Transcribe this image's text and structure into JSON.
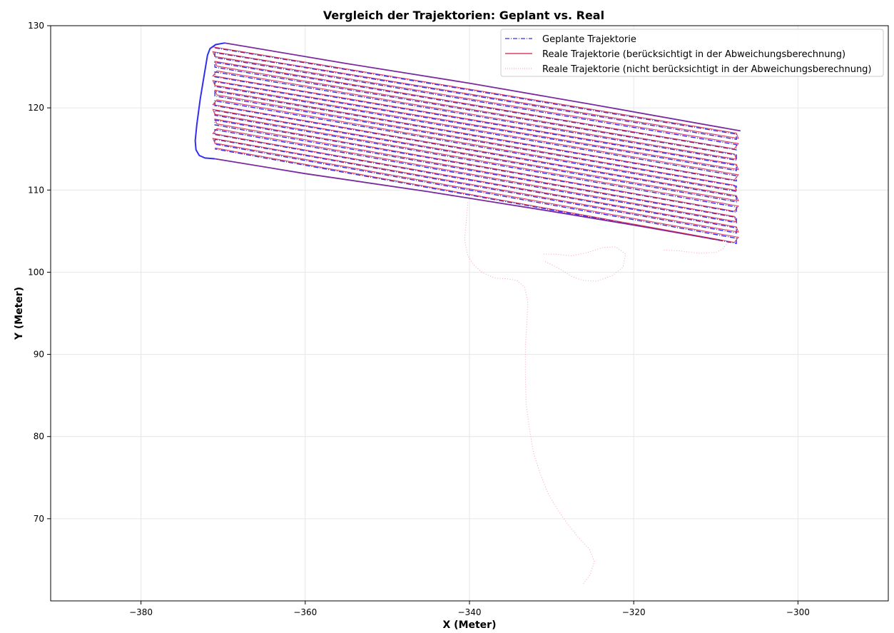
{
  "chart_data": {
    "type": "line",
    "title": "Vergleich der Trajektorien: Geplant vs. Real",
    "xlabel": "X (Meter)",
    "ylabel": "Y (Meter)",
    "xlim": [
      -391,
      -289
    ],
    "ylim": [
      60,
      130
    ],
    "xticks": [
      {
        "value": -380,
        "label": "−380"
      },
      {
        "value": -360,
        "label": "−360"
      },
      {
        "value": -340,
        "label": "−340"
      },
      {
        "value": -320,
        "label": "−320"
      },
      {
        "value": -300,
        "label": "−300"
      }
    ],
    "yticks": [
      {
        "value": 70,
        "label": "70"
      },
      {
        "value": 80,
        "label": "80"
      },
      {
        "value": 90,
        "label": "90"
      },
      {
        "value": 100,
        "label": "100"
      },
      {
        "value": 110,
        "label": "110"
      },
      {
        "value": 120,
        "label": "120"
      },
      {
        "value": 130,
        "label": "130"
      }
    ],
    "grid": true,
    "legend_position": "top-right",
    "rows": {
      "count": 22,
      "x_left": -371.0,
      "x_right": -307.5,
      "y_left_top": 127.3,
      "y_left_bottom": 115.0,
      "y_right_top": 116.8,
      "y_right_bottom": 103.5
    },
    "series": [
      {
        "name": "Geplante Trajektorie",
        "color": "#2f2ff0",
        "style": "dashdot",
        "outline": [
          [
            -369.8,
            127.9
          ],
          [
            -370.9,
            127.7
          ],
          [
            -371.6,
            127.2
          ],
          [
            -371.9,
            126.4
          ],
          [
            -372.3,
            124.0
          ],
          [
            -372.8,
            121.0
          ],
          [
            -373.2,
            118.0
          ],
          [
            -373.4,
            116.0
          ],
          [
            -373.3,
            114.9
          ],
          [
            -372.9,
            114.2
          ],
          [
            -372.2,
            113.9
          ],
          [
            -371.0,
            113.8
          ]
        ]
      },
      {
        "name": "Reale Trajektorie (berücksichtigt in der Abweichungsberechnung)",
        "color": "#d81b40",
        "style": "solid"
      },
      {
        "name": "Reale Trajektorie (nicht berücksichtigt in der Abweichungsberechnung)",
        "color": "#f6a0b8",
        "style": "dotted",
        "path": [
          [
            -340.2,
            108.5
          ],
          [
            -340.4,
            106.0
          ],
          [
            -340.6,
            104.0
          ],
          [
            -340.2,
            102.0
          ],
          [
            -339.5,
            100.9
          ],
          [
            -338.5,
            100.0
          ],
          [
            -337.0,
            99.3
          ],
          [
            -335.5,
            99.2
          ],
          [
            -334.2,
            99.0
          ],
          [
            -333.3,
            98.2
          ],
          [
            -332.9,
            96.5
          ],
          [
            -333.0,
            94.0
          ],
          [
            -333.2,
            91.0
          ],
          [
            -333.2,
            87.5
          ],
          [
            -333.1,
            84.0
          ],
          [
            -332.7,
            81.0
          ],
          [
            -332.2,
            78.0
          ],
          [
            -331.4,
            75.5
          ],
          [
            -330.4,
            73.0
          ],
          [
            -329.2,
            71.0
          ],
          [
            -328.0,
            69.3
          ],
          [
            -326.8,
            67.8
          ],
          [
            -325.4,
            66.3
          ],
          [
            -324.8,
            64.8
          ],
          [
            -325.3,
            63.2
          ],
          [
            -326.2,
            62.0
          ]
        ],
        "loop": [
          [
            -331.0,
            102.2
          ],
          [
            -329.5,
            102.2
          ],
          [
            -327.6,
            102.0
          ],
          [
            -325.6,
            102.4
          ],
          [
            -323.8,
            103.0
          ],
          [
            -322.2,
            103.1
          ],
          [
            -321.0,
            102.2
          ],
          [
            -321.3,
            100.6
          ],
          [
            -322.6,
            99.6
          ],
          [
            -324.5,
            98.9
          ],
          [
            -326.2,
            99.0
          ],
          [
            -327.6,
            99.5
          ],
          [
            -329.0,
            100.4
          ],
          [
            -330.2,
            101.0
          ],
          [
            -331.0,
            101.4
          ]
        ],
        "right_tail": [
          [
            -308.5,
            103.6
          ],
          [
            -309.2,
            102.8
          ],
          [
            -310.0,
            102.4
          ],
          [
            -312.0,
            102.3
          ],
          [
            -314.5,
            102.6
          ],
          [
            -316.5,
            102.7
          ]
        ]
      }
    ]
  }
}
